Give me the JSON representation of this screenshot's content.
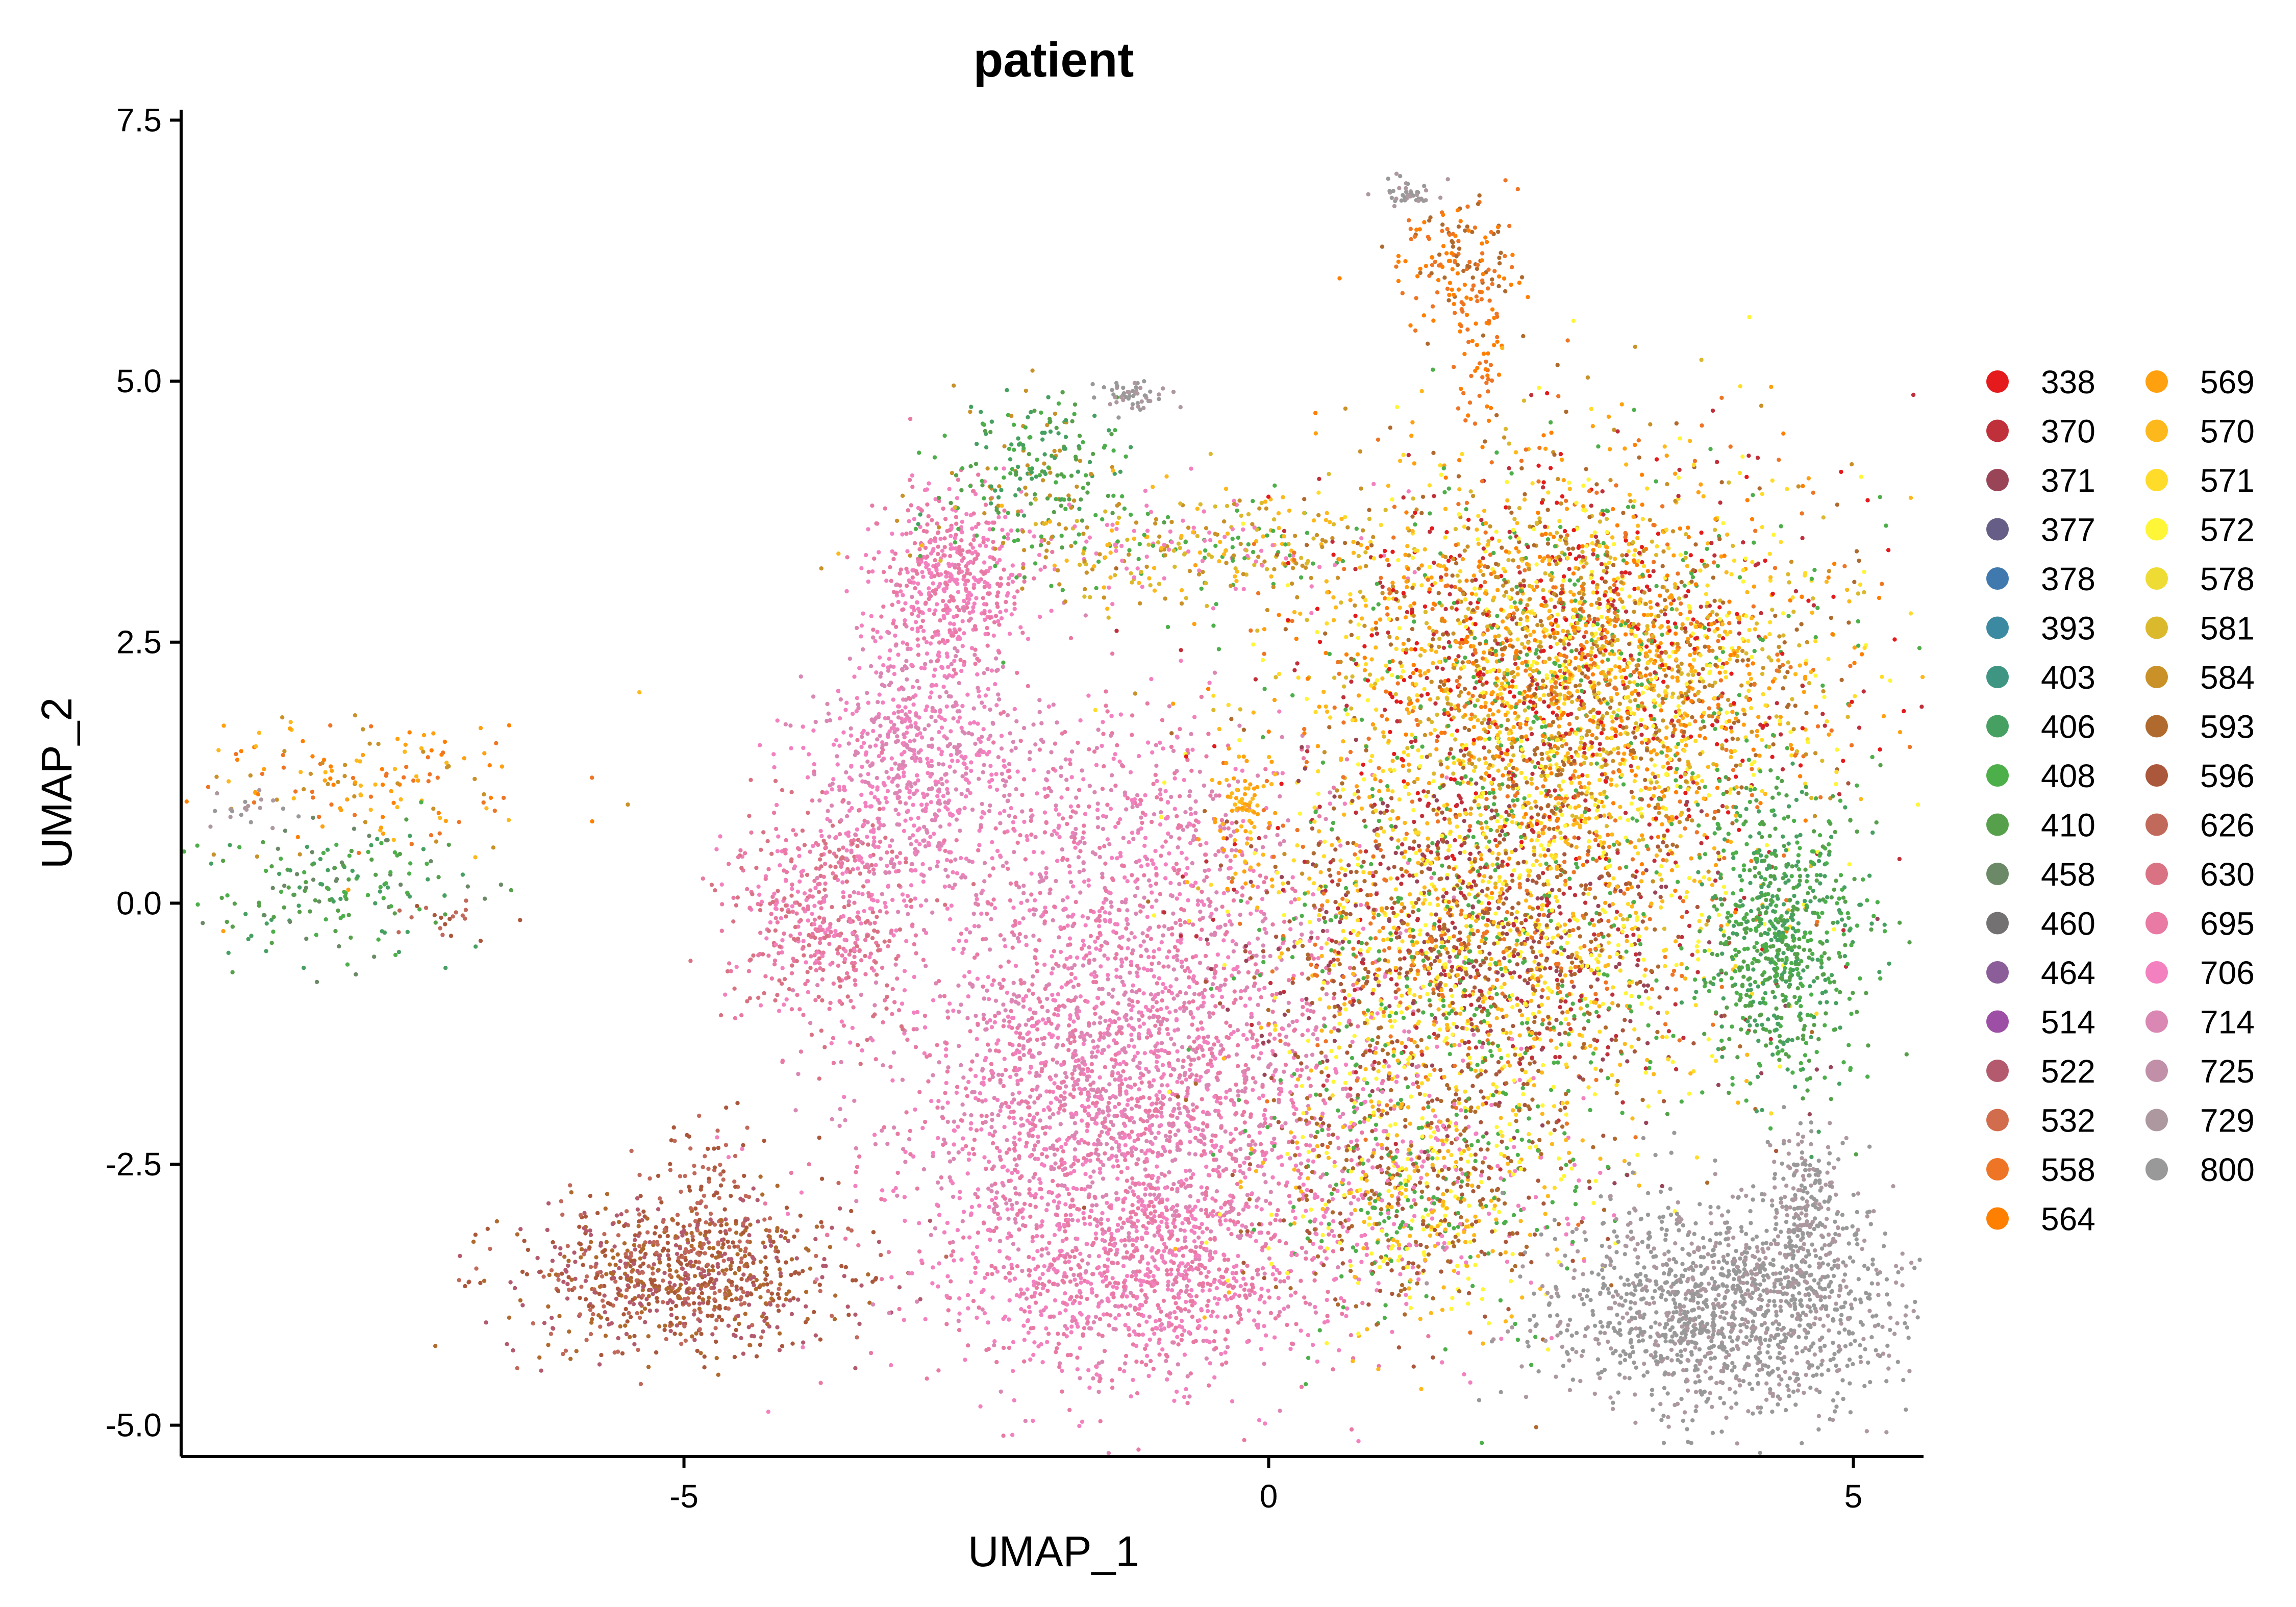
{
  "chart_data": {
    "type": "scatter",
    "title": "patient",
    "xlabel": "UMAP_1",
    "ylabel": "UMAP_2",
    "xlim": [
      -9.3,
      5.6
    ],
    "ylim": [
      -5.3,
      7.6
    ],
    "x_ticks": [
      {
        "value": -5,
        "label": "-5"
      },
      {
        "value": 0,
        "label": "0"
      },
      {
        "value": 5,
        "label": "5"
      }
    ],
    "y_ticks": [
      {
        "value": 7.5,
        "label": "7.5"
      },
      {
        "value": 5.0,
        "label": "5.0"
      },
      {
        "value": 2.5,
        "label": "2.5"
      },
      {
        "value": 0.0,
        "label": "0.0"
      },
      {
        "value": -2.5,
        "label": "-2.5"
      },
      {
        "value": -5.0,
        "label": "-5.0"
      }
    ],
    "grid": false,
    "legend_position": "right",
    "legend_columns": 2,
    "series": [
      {
        "name": "338",
        "color": "#E41A1C"
      },
      {
        "name": "370",
        "color": "#C0303A"
      },
      {
        "name": "371",
        "color": "#9A4458"
      },
      {
        "name": "377",
        "color": "#665E86"
      },
      {
        "name": "378",
        "color": "#3F79AE"
      },
      {
        "name": "393",
        "color": "#3C8AA1"
      },
      {
        "name": "403",
        "color": "#3D9582"
      },
      {
        "name": "406",
        "color": "#46A062"
      },
      {
        "name": "408",
        "color": "#4DAF4A"
      },
      {
        "name": "410",
        "color": "#57A04B"
      },
      {
        "name": "458",
        "color": "#6B8966"
      },
      {
        "name": "460",
        "color": "#737171"
      },
      {
        "name": "464",
        "color": "#8B5E99"
      },
      {
        "name": "514",
        "color": "#9D4FA6"
      },
      {
        "name": "522",
        "color": "#B35A6E"
      },
      {
        "name": "532",
        "color": "#D16C4C"
      },
      {
        "name": "558",
        "color": "#EE7525"
      },
      {
        "name": "564",
        "color": "#FF7F00"
      },
      {
        "name": "569",
        "color": "#FFA00F"
      },
      {
        "name": "570",
        "color": "#FDB81C"
      },
      {
        "name": "571",
        "color": "#FFDC29"
      },
      {
        "name": "572",
        "color": "#FEF636"
      },
      {
        "name": "578",
        "color": "#EEDC34"
      },
      {
        "name": "581",
        "color": "#DBB92D"
      },
      {
        "name": "584",
        "color": "#C99128"
      },
      {
        "name": "593",
        "color": "#B06A2E"
      },
      {
        "name": "596",
        "color": "#AA573C"
      },
      {
        "name": "626",
        "color": "#C1695B"
      },
      {
        "name": "630",
        "color": "#D97384"
      },
      {
        "name": "695",
        "color": "#E87AA4"
      },
      {
        "name": "706",
        "color": "#F381BF"
      },
      {
        "name": "714",
        "color": "#DA87B4"
      },
      {
        "name": "725",
        "color": "#C18FA8"
      },
      {
        "name": "729",
        "color": "#AE989F"
      },
      {
        "name": "800",
        "color": "#999999"
      }
    ],
    "clusters": [
      {
        "name": "left-cluster-orange",
        "center": [
          -7.7,
          1.2
        ],
        "spread": [
          0.8,
          0.35
        ],
        "n": 160,
        "palette": [
          "#FF7F00",
          "#FFA00F",
          "#FDB81C",
          "#EE7525",
          "#C99128"
        ]
      },
      {
        "name": "left-cluster-green",
        "center": [
          -8.0,
          0.15
        ],
        "spread": [
          0.55,
          0.35
        ],
        "n": 170,
        "palette": [
          "#4DAF4A",
          "#57A04B",
          "#46A062",
          "#6B8966"
        ]
      },
      {
        "name": "left-cluster-grey",
        "center": [
          -8.7,
          0.9
        ],
        "spread": [
          0.15,
          0.08
        ],
        "n": 20,
        "palette": [
          "#999999",
          "#AE989F"
        ]
      },
      {
        "name": "left-cluster-brown",
        "center": [
          -7.1,
          -0.15
        ],
        "spread": [
          0.2,
          0.1
        ],
        "n": 20,
        "palette": [
          "#C1695B",
          "#AA573C"
        ]
      },
      {
        "name": "bottom-left-brown",
        "center": [
          -5.0,
          -3.55
        ],
        "spread": [
          0.7,
          0.38
        ],
        "n": 900,
        "palette": [
          "#AA573C",
          "#C1695B",
          "#B35A6E",
          "#B06A2E"
        ]
      },
      {
        "name": "bottom-left-brown-tail",
        "center": [
          -4.8,
          -2.5
        ],
        "spread": [
          0.2,
          0.35
        ],
        "n": 60,
        "palette": [
          "#C1695B",
          "#AA573C"
        ]
      },
      {
        "name": "pink-core",
        "center": [
          -1.2,
          -1.9
        ],
        "spread": [
          1.0,
          1.15
        ],
        "n": 2800,
        "palette": [
          "#F381BF",
          "#E87AA4",
          "#DA87B4"
        ]
      },
      {
        "name": "pink-lower",
        "center": [
          -1.0,
          -3.6
        ],
        "spread": [
          0.8,
          0.45
        ],
        "n": 700,
        "palette": [
          "#F381BF",
          "#E87AA4"
        ]
      },
      {
        "name": "pink-left-lobe",
        "center": [
          -3.8,
          -0.1
        ],
        "spread": [
          0.4,
          0.55
        ],
        "n": 550,
        "palette": [
          "#E87AA4",
          "#D97384",
          "#F381BF"
        ]
      },
      {
        "name": "pink-upper",
        "center": [
          -2.7,
          3.1
        ],
        "spread": [
          0.3,
          0.45
        ],
        "n": 500,
        "palette": [
          "#F381BF",
          "#E87AA4"
        ]
      },
      {
        "name": "pink-arc",
        "center": [
          -3.0,
          1.4
        ],
        "spread": [
          0.45,
          0.6
        ],
        "n": 650,
        "palette": [
          "#F381BF",
          "#DA87B4"
        ]
      },
      {
        "name": "pink-middle",
        "center": [
          -1.3,
          0.6
        ],
        "spread": [
          0.9,
          0.7
        ],
        "n": 600,
        "palette": [
          "#F381BF",
          "#E87AA4",
          "#DA87B4"
        ]
      },
      {
        "name": "green-top",
        "center": [
          -2.0,
          4.1
        ],
        "spread": [
          0.4,
          0.35
        ],
        "n": 220,
        "palette": [
          "#4DAF4A",
          "#57A04B",
          "#46A062",
          "#C99128"
        ]
      },
      {
        "name": "grey-top-mid",
        "center": [
          -1.15,
          4.85
        ],
        "spread": [
          0.15,
          0.08
        ],
        "n": 50,
        "palette": [
          "#999999",
          "#AE989F"
        ]
      },
      {
        "name": "mixed-top-bridge",
        "center": [
          -0.7,
          3.4
        ],
        "spread": [
          1.0,
          0.3
        ],
        "n": 400,
        "palette": [
          "#C99128",
          "#DBB92D",
          "#4DAF4A",
          "#FDB81C",
          "#F381BF"
        ]
      },
      {
        "name": "orange-spike",
        "center": [
          1.6,
          6.2
        ],
        "spread": [
          0.25,
          0.3
        ],
        "n": 150,
        "palette": [
          "#EE7525",
          "#FF7F00",
          "#B06A2E"
        ]
      },
      {
        "name": "grey-spike-top",
        "center": [
          1.2,
          6.8
        ],
        "spread": [
          0.15,
          0.07
        ],
        "n": 40,
        "palette": [
          "#999999",
          "#AE989F"
        ]
      },
      {
        "name": "orange-spike-stem",
        "center": [
          1.8,
          5.2
        ],
        "spread": [
          0.12,
          0.45
        ],
        "n": 60,
        "palette": [
          "#EE7525",
          "#FF7F00"
        ]
      },
      {
        "name": "right-mixed-main",
        "center": [
          2.6,
          2.2
        ],
        "spread": [
          1.1,
          1.0
        ],
        "n": 3600,
        "palette": [
          "#EE7525",
          "#FF7F00",
          "#FFA00F",
          "#FDB81C",
          "#FFDC29",
          "#E41A1C",
          "#C0303A",
          "#B06A2E",
          "#C99128",
          "#4DAF4A",
          "#FEF636",
          "#DBB92D"
        ]
      },
      {
        "name": "right-mixed-lower",
        "center": [
          1.9,
          -0.4
        ],
        "spread": [
          1.0,
          0.9
        ],
        "n": 2300,
        "palette": [
          "#B06A2E",
          "#AA573C",
          "#FFDC29",
          "#4DAF4A",
          "#EE7525",
          "#C0303A",
          "#FDB81C",
          "#FEF636",
          "#9A4458"
        ]
      },
      {
        "name": "right-mixed-bottom",
        "center": [
          1.3,
          -2.7
        ],
        "spread": [
          0.7,
          0.7
        ],
        "n": 1000,
        "palette": [
          "#4DAF4A",
          "#B06A2E",
          "#AA573C",
          "#FDB81C",
          "#F381BF",
          "#FEF636"
        ]
      },
      {
        "name": "right-green",
        "center": [
          4.4,
          -0.3
        ],
        "spread": [
          0.35,
          0.7
        ],
        "n": 700,
        "palette": [
          "#4DAF4A",
          "#57A04B",
          "#46A062"
        ]
      },
      {
        "name": "orange-middle",
        "center": [
          -0.2,
          0.9
        ],
        "spread": [
          0.15,
          0.3
        ],
        "n": 80,
        "palette": [
          "#FFA00F",
          "#FDB81C"
        ]
      },
      {
        "name": "grey-bottom-right",
        "center": [
          3.9,
          -3.9
        ],
        "spread": [
          0.75,
          0.5
        ],
        "n": 1400,
        "palette": [
          "#999999",
          "#AE989F",
          "#999999"
        ]
      },
      {
        "name": "grey-right-edge",
        "center": [
          4.6,
          -3.0
        ],
        "spread": [
          0.2,
          0.45
        ],
        "n": 250,
        "palette": [
          "#999999",
          "#AE989F"
        ]
      }
    ]
  }
}
